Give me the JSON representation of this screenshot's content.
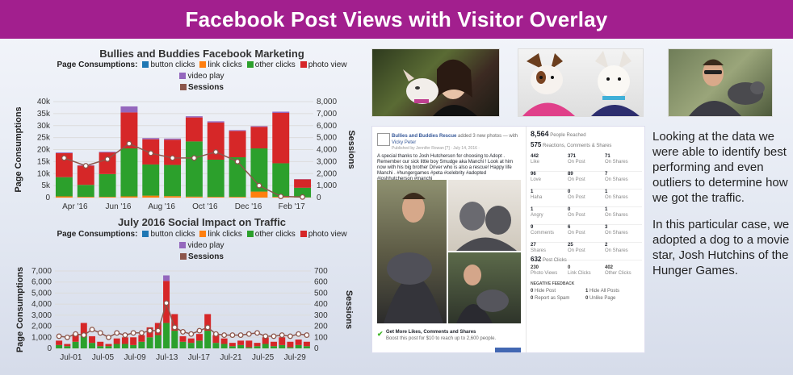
{
  "banner": {
    "title": "Facebook Post Views with Visitor Overlay"
  },
  "colors": {
    "button_clicks": "#1f77b4",
    "link_clicks": "#ff7f0e",
    "other_clicks": "#2ca02c",
    "photo_view": "#d62728",
    "video_play": "#9467bd",
    "sessions": "#8c564b"
  },
  "legend": {
    "prefix": "Page Consumptions:",
    "button_clicks": "button clicks",
    "link_clicks": "link clicks",
    "other_clicks": "other clicks",
    "photo_view": "photo view",
    "video_play": "video play",
    "sessions": "Sessions"
  },
  "chart_data": [
    {
      "type": "bar",
      "title": "Bullies and Buddies Facebook Marketing",
      "ylabel": "Page Consumptions",
      "y2label": "Sessions",
      "ylim": [
        0,
        40000
      ],
      "y2lim": [
        0,
        8000
      ],
      "yticks": [
        "0",
        "5k",
        "10k",
        "15k",
        "20k",
        "25k",
        "30k",
        "35k",
        "40k"
      ],
      "y2ticks": [
        "0",
        "1,000",
        "2,000",
        "3,000",
        "4,000",
        "5,000",
        "6,000",
        "7,000",
        "8,000"
      ],
      "xticks": [
        "Apr '16",
        "Jun '16",
        "Aug '16",
        "Oct '16",
        "Dec '16",
        "Feb '17"
      ],
      "series": [
        {
          "name": "button clicks",
          "values": [
            0,
            0,
            0,
            0,
            0,
            0,
            0,
            0,
            0,
            0,
            0,
            0
          ]
        },
        {
          "name": "link clicks",
          "values": [
            500,
            300,
            300,
            500,
            800,
            600,
            400,
            300,
            300,
            2500,
            300,
            100
          ]
        },
        {
          "name": "other clicks",
          "values": [
            8000,
            5000,
            9500,
            20000,
            13000,
            13000,
            23000,
            15500,
            16500,
            18000,
            14000,
            4000
          ]
        },
        {
          "name": "photo view",
          "values": [
            10000,
            8000,
            9000,
            15000,
            10500,
            10500,
            10000,
            15500,
            11000,
            9000,
            21000,
            3500
          ]
        },
        {
          "name": "video play",
          "values": [
            300,
            200,
            300,
            2500,
            500,
            500,
            500,
            500,
            300,
            300,
            500,
            100
          ]
        }
      ],
      "sessions": [
        3300,
        2650,
        3200,
        4500,
        3700,
        3300,
        3300,
        3800,
        3000,
        1000,
        100,
        50
      ]
    },
    {
      "type": "bar",
      "title": "July 2016 Social Impact on Traffic",
      "ylabel": "Page Consumptions",
      "y2label": "Sessions",
      "ylim": [
        0,
        7000
      ],
      "y2lim": [
        0,
        700
      ],
      "yticks": [
        "0",
        "1,000",
        "2,000",
        "3,000",
        "4,000",
        "5,000",
        "6,000",
        "7,000"
      ],
      "y2ticks": [
        "0",
        "100",
        "200",
        "300",
        "400",
        "500",
        "600",
        "700"
      ],
      "xticks": [
        "Jul-01",
        "Jul-05",
        "Jul-09",
        "Jul-13",
        "Jul-17",
        "Jul-21",
        "Jul-25",
        "Jul-29"
      ],
      "series": [
        {
          "name": "other clicks",
          "values": [
            300,
            200,
            600,
            1100,
            500,
            200,
            200,
            400,
            400,
            300,
            600,
            1000,
            1200,
            2300,
            1600,
            600,
            500,
            700,
            1600,
            500,
            400,
            200,
            300,
            100,
            200,
            400,
            200,
            300,
            100,
            300,
            200
          ]
        },
        {
          "name": "photo view",
          "values": [
            400,
            200,
            700,
            1200,
            600,
            400,
            200,
            500,
            600,
            700,
            600,
            900,
            1100,
            3800,
            1500,
            500,
            400,
            600,
            1500,
            700,
            500,
            300,
            400,
            600,
            300,
            600,
            400,
            700,
            500,
            500,
            400
          ]
        },
        {
          "name": "video play",
          "values": [
            0,
            0,
            0,
            0,
            0,
            0,
            0,
            0,
            0,
            0,
            0,
            0,
            0,
            500,
            0,
            0,
            0,
            0,
            0,
            0,
            0,
            0,
            0,
            0,
            0,
            0,
            0,
            0,
            0,
            0,
            0
          ]
        }
      ],
      "sessions": [
        110,
        100,
        130,
        120,
        170,
        140,
        100,
        140,
        120,
        140,
        140,
        160,
        160,
        410,
        190,
        150,
        130,
        160,
        190,
        130,
        120,
        120,
        120,
        130,
        140,
        110,
        110,
        120,
        110,
        130,
        120
      ]
    }
  ],
  "fb": {
    "page_name": "Bullies and Buddies Rescue",
    "action": "added 3 new photos — with",
    "tagged": "Vicky Peter",
    "published": "Published by Jennifer Rowan [?] · July 14, 2016 · ",
    "text": "A special thanks to Josh Hutcherson for choosing to Adopt . Remember our sick little boy Smudge aka Manchi ! Look at him now with his big brother Driver who is also a rescue! Happy life Manchi . #hungergames #peta #celebrity #adopted #joshhutcherson #manchi",
    "promo_title": "Get More Likes, Comments and Shares",
    "promo_sub": "Boost this post for $10 to reach up to 2,600 people.",
    "people_reached": "8,564",
    "people_reached_label": "People Reached",
    "reactions_count": "575",
    "reactions_label": "Reactions, Comments & Shares",
    "rows": [
      {
        "n1": "442",
        "l1": "Like",
        "n2": "371",
        "l2": "On Post",
        "n3": "71",
        "l3": "On Shares"
      },
      {
        "n1": "96",
        "l1": "Love",
        "n2": "89",
        "l2": "On Post",
        "n3": "7",
        "l3": "On Shares"
      },
      {
        "n1": "1",
        "l1": "Haha",
        "n2": "0",
        "l2": "On Post",
        "n3": "1",
        "l3": "On Shares"
      },
      {
        "n1": "1",
        "l1": "Angry",
        "n2": "0",
        "l2": "On Post",
        "n3": "1",
        "l3": "On Shares"
      },
      {
        "n1": "9",
        "l1": "Comments",
        "n2": "6",
        "l2": "On Post",
        "n3": "3",
        "l3": "On Shares"
      },
      {
        "n1": "27",
        "l1": "Shares",
        "n2": "25",
        "l2": "On Post",
        "n3": "2",
        "l3": "On Shares"
      }
    ],
    "post_clicks": "632",
    "post_clicks_label": "Post Clicks",
    "clicks": [
      {
        "n": "230",
        "l": "Photo Views"
      },
      {
        "n": "0",
        "l": "Link Clicks"
      },
      {
        "n": "402",
        "l": "Other Clicks"
      }
    ],
    "neg_label": "NEGATIVE FEEDBACK",
    "neg": [
      {
        "n": "0",
        "l": "Hide Post"
      },
      {
        "n": "1",
        "l": "Hide All Posts"
      },
      {
        "n": "0",
        "l": "Report as Spam"
      },
      {
        "n": "0",
        "l": "Unlike Page"
      }
    ]
  },
  "side": {
    "p1": "Looking at the data we were able to identify best performing and even outliers to determine how we got the traffic.",
    "p2": "In this particular case, we adopted a dog to a movie star, Josh Hutchins of the Hunger Games."
  }
}
